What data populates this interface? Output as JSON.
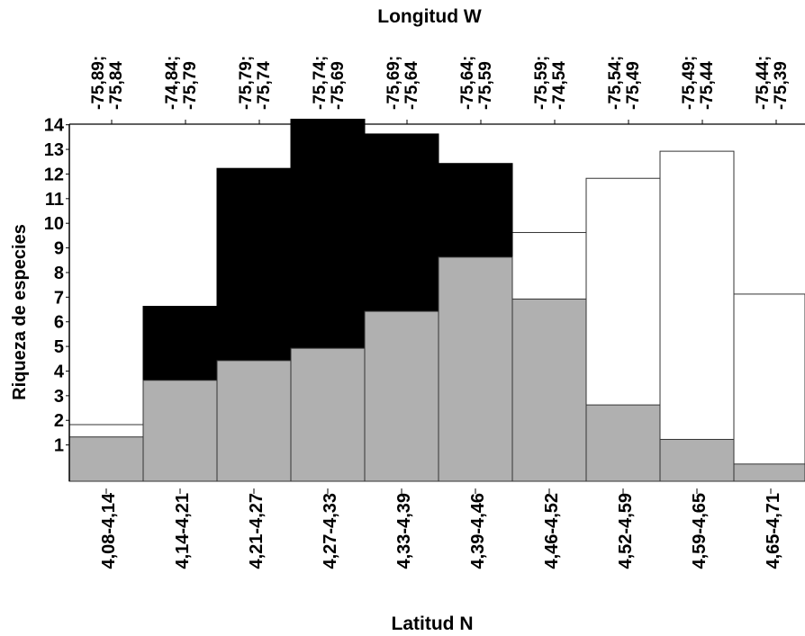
{
  "chart_data": {
    "type": "bar",
    "title": "",
    "xlabel": "Latitud N",
    "x2label": "Longitud W",
    "ylabel": "Riqueza de especies",
    "ylim": [
      0,
      14.5
    ],
    "yticks": [
      1,
      2,
      3,
      4,
      5,
      6,
      7,
      8,
      9,
      10,
      11,
      12,
      13,
      14
    ],
    "categories": [
      "4,08-4,14",
      "4,14-4,21",
      "4,21-4,27",
      "4,27-4,33",
      "4,33-4,39",
      "4,39-4,46",
      "4,46-4,52",
      "4,52-4,59",
      "4,59-4,65",
      "4,65-4,71"
    ],
    "top_labels": [
      [
        "-75,89;",
        "-75,84"
      ],
      [
        "-74,84;",
        "-75,79"
      ],
      [
        "-75,79;",
        "-75,74"
      ],
      [
        "-75,74;",
        "-75,69"
      ],
      [
        "-75,69;",
        "-75,64"
      ],
      [
        "-75,64;",
        "-75,59"
      ],
      [
        "-75,59;",
        "-74,54"
      ],
      [
        "-75,54;",
        "-75,49"
      ],
      [
        "-75,49;",
        "-75,44"
      ],
      [
        "-75,44;",
        "-75,39"
      ]
    ],
    "series": [
      {
        "fill": "#b0b0b0",
        "values": [
          1.8,
          4.1,
          4.9,
          5.4,
          6.9,
          9.1,
          7.4,
          3.1,
          1.7,
          0.7
        ]
      },
      {
        "fill": "#000000",
        "values": [
          0,
          7.1,
          12.7,
          14.7,
          14.1,
          12.9,
          0,
          0,
          0,
          0
        ]
      },
      {
        "fill": "#ffffff",
        "values": [
          2.3,
          7.1,
          12.7,
          14.7,
          14.1,
          12.9,
          10.1,
          12.3,
          13.4,
          7.6
        ]
      }
    ]
  }
}
